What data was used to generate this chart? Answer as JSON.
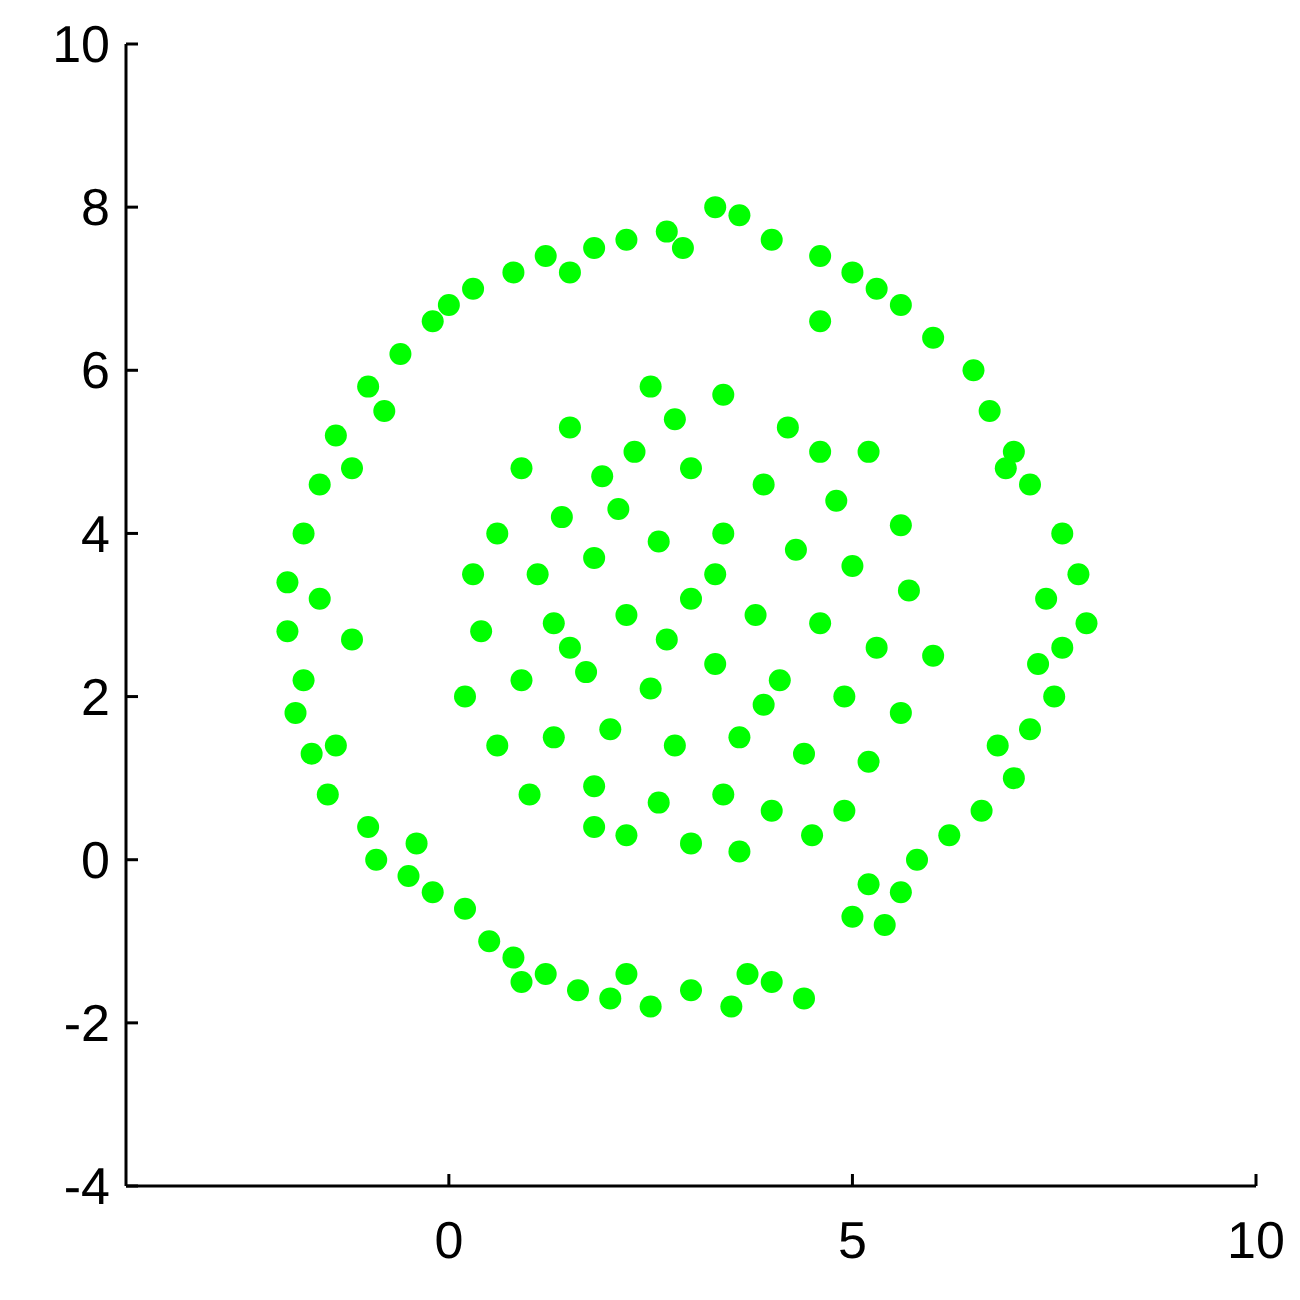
{
  "chart_data": {
    "type": "scatter",
    "xlim": [
      -4,
      10
    ],
    "ylim": [
      -4,
      10
    ],
    "xticks": [
      0,
      5,
      10
    ],
    "yticks": [
      -4,
      -2,
      0,
      2,
      4,
      6,
      8,
      10
    ],
    "grid": false,
    "marker": "circle",
    "series": [
      {
        "color": "#00ff00",
        "x": [
          3.3,
          3.6,
          2.7,
          2.2,
          1.8,
          1.2,
          0.8,
          0.3,
          -0.2,
          -0.6,
          -1.0,
          -1.4,
          -1.6,
          -1.8,
          -2.0,
          -2.0,
          -1.8,
          -1.9,
          -1.4,
          -1.5,
          -1.0,
          -0.9,
          -0.5,
          -0.2,
          0.2,
          0.5,
          0.8,
          1.2,
          1.6,
          2.0,
          2.5,
          3.0,
          3.5,
          4.0,
          4.4,
          5.0,
          5.4,
          5.6,
          5.8,
          6.2,
          6.6,
          7.0,
          7.2,
          7.5,
          7.6,
          7.9,
          7.8,
          7.6,
          7.2,
          7.0,
          6.7,
          6.5,
          6.0,
          5.6,
          5.0,
          4.6,
          4.0,
          4.6,
          0.0,
          -0.8,
          -1.2,
          -1.6,
          -1.2,
          6.8,
          7.3,
          7.4,
          6.9,
          5.3,
          1.5,
          2.9,
          0.9,
          2.2,
          3.7,
          5.2,
          -0.4,
          -1.7,
          2.5,
          3.4,
          4.2,
          1.5,
          5.2,
          0.9,
          2.3,
          3.0,
          3.9,
          4.8,
          0.6,
          1.4,
          2.1,
          5.6,
          0.3,
          1.1,
          1.8,
          2.6,
          3.4,
          4.3,
          5.0,
          5.7,
          0.4,
          1.3,
          2.2,
          3.0,
          3.8,
          4.6,
          5.3,
          6.0,
          0.2,
          0.9,
          1.7,
          2.5,
          3.3,
          4.1,
          4.9,
          5.6,
          0.6,
          1.3,
          2.0,
          2.8,
          3.6,
          4.4,
          5.2,
          1.0,
          1.8,
          2.6,
          3.4,
          4.0,
          4.9,
          2.2,
          3.0,
          3.6,
          1.8,
          4.5,
          2.8,
          1.9,
          4.6,
          3.3,
          2.7,
          3.9,
          1.5
        ],
        "values": [
          8.0,
          7.9,
          7.7,
          7.6,
          7.5,
          7.4,
          7.2,
          7.0,
          6.6,
          6.2,
          5.8,
          5.2,
          4.6,
          4.0,
          3.4,
          2.8,
          2.2,
          1.8,
          1.4,
          0.8,
          0.4,
          0.0,
          -0.2,
          -0.4,
          -0.6,
          -1.0,
          -1.2,
          -1.4,
          -1.6,
          -1.7,
          -1.8,
          -1.6,
          -1.8,
          -1.5,
          -1.7,
          -0.7,
          -0.8,
          -0.4,
          0.0,
          0.3,
          0.6,
          1.0,
          1.6,
          2.0,
          2.6,
          2.9,
          3.5,
          4.0,
          4.6,
          5.0,
          5.5,
          6.0,
          6.4,
          6.8,
          7.2,
          7.4,
          7.6,
          6.6,
          6.8,
          5.5,
          4.8,
          3.2,
          2.7,
          1.4,
          2.4,
          3.2,
          4.8,
          7.0,
          7.2,
          7.5,
          -1.5,
          -1.4,
          -1.4,
          -0.3,
          0.2,
          1.3,
          5.8,
          5.7,
          5.3,
          5.3,
          5.0,
          4.8,
          5.0,
          4.8,
          4.6,
          4.4,
          4.0,
          4.2,
          4.3,
          4.1,
          3.5,
          3.5,
          3.7,
          3.9,
          4.0,
          3.8,
          3.6,
          3.3,
          2.8,
          2.9,
          3.0,
          3.2,
          3.0,
          2.9,
          2.6,
          2.5,
          2.0,
          2.2,
          2.3,
          2.1,
          2.4,
          2.2,
          2.0,
          1.8,
          1.4,
          1.5,
          1.6,
          1.4,
          1.5,
          1.3,
          1.2,
          0.8,
          0.9,
          0.7,
          0.8,
          0.6,
          0.6,
          0.3,
          0.2,
          0.1,
          0.4,
          0.3,
          5.4,
          4.7,
          5.0,
          3.5,
          2.7,
          1.9,
          2.6
        ]
      }
    ]
  }
}
